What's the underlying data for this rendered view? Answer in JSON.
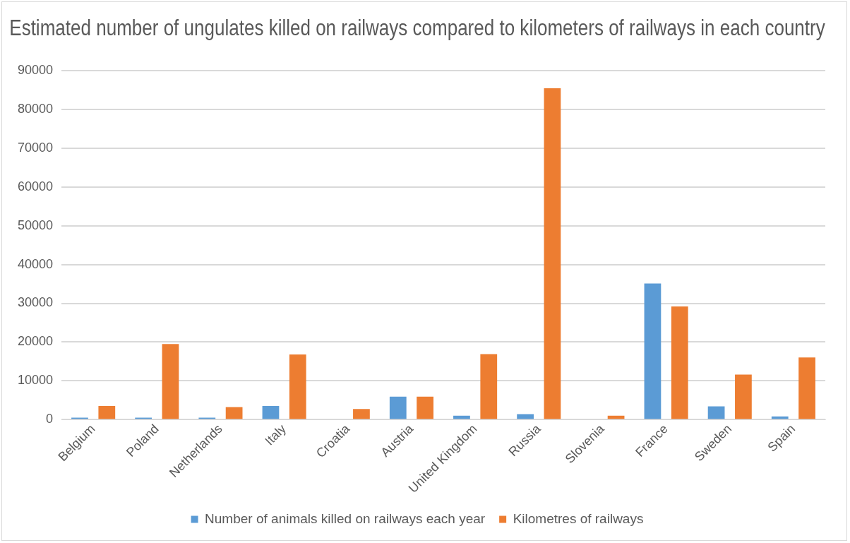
{
  "chart_data": {
    "type": "bar",
    "title": "Estimated number of ungulates killed on railways compared to kilometers of railways in each country",
    "categories": [
      "Belgium",
      "Poland",
      "Netherlands",
      "Italy",
      "Croatia",
      "Austria",
      "United Kingdom",
      "Russia",
      "Slovenia",
      "France",
      "Sweden",
      "Spain"
    ],
    "series": [
      {
        "name": "Number of animals killed on railways each year",
        "color": "#5b9bd5",
        "values": [
          500,
          500,
          500,
          3500,
          0,
          5900,
          1000,
          1400,
          0,
          35100,
          3400,
          800
        ]
      },
      {
        "name": "Kilometres of railways",
        "color": "#ed7d31",
        "values": [
          3500,
          19500,
          3200,
          16800,
          2700,
          5900,
          16900,
          85500,
          1000,
          29200,
          11600,
          16000
        ]
      }
    ],
    "ylim": [
      0,
      90000
    ],
    "yticks": [
      0,
      10000,
      20000,
      30000,
      40000,
      50000,
      60000,
      70000,
      80000,
      90000
    ],
    "grid": "y",
    "legend": "bottom"
  }
}
